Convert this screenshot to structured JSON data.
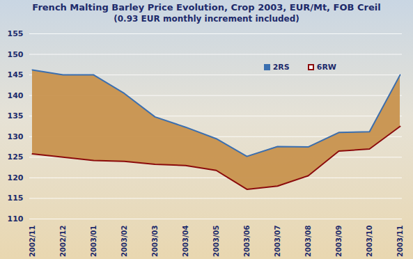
{
  "chart_data": {
    "type": "area_range",
    "title": "French Malting Barley Price Evolution, Crop 2003, EUR/Mt, FOB Creil",
    "subtitle": "(0.93 EUR monthly increment included)",
    "categories": [
      "2002/11",
      "2002/12",
      "2003/01",
      "2003/02",
      "2003/03",
      "2003/04",
      "2003/05",
      "2003/06",
      "2003/07",
      "2003/08",
      "2003/09",
      "2003/10",
      "2003/11"
    ],
    "series": [
      {
        "name": "2RS",
        "color": "#3b6fb0",
        "values": [
          146.2,
          145,
          145,
          140.5,
          134.8,
          132.3,
          129.5,
          125.2,
          127.6,
          127.5,
          131,
          131.2,
          145
        ]
      },
      {
        "name": "6RW",
        "color": "#8b0a0a",
        "values": [
          125.8,
          125,
          124.2,
          124,
          123.3,
          123,
          121.8,
          117.2,
          118,
          120.5,
          126.5,
          127,
          132.5
        ]
      }
    ],
    "ylim": [
      110,
      155
    ],
    "yticks": [
      110,
      115,
      120,
      125,
      130,
      135,
      140,
      145,
      150,
      155
    ],
    "grid": true,
    "legend": "top-right"
  }
}
